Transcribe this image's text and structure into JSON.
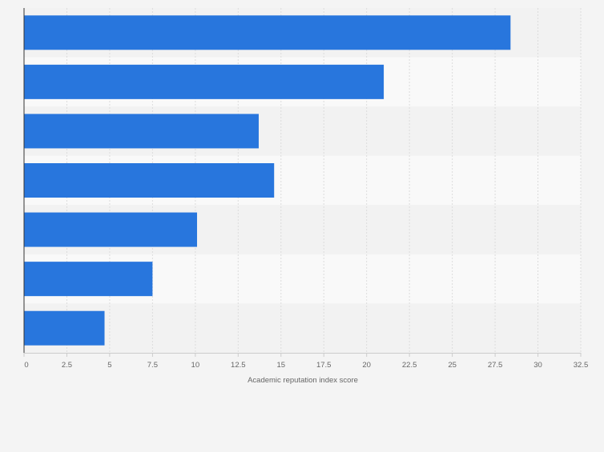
{
  "chart_data": {
    "type": "bar",
    "orientation": "horizontal",
    "categories": [
      "",
      "",
      "",
      "",
      "",
      "",
      ""
    ],
    "values": [
      28.4,
      21.0,
      13.7,
      14.6,
      10.1,
      7.5,
      4.7
    ],
    "xlabel": "Academic reputation index score",
    "ylabel": "",
    "xlim": [
      0,
      32.5
    ],
    "xticks": [
      0,
      2.5,
      5,
      7.5,
      10,
      12.5,
      15,
      17.5,
      20,
      22.5,
      25,
      27.5,
      30,
      32.5
    ],
    "xtick_labels": [
      "0",
      "2.5",
      "5",
      "7.5",
      "10",
      "12.5",
      "15",
      "17.5",
      "20",
      "22.5",
      "25",
      "27.5",
      "30",
      "32.5"
    ],
    "grid": "vertical",
    "colors": {
      "bar": "#2876dd",
      "band_light": "#f9f9f9",
      "band_dark": "#f2f2f2",
      "background": "#f4f4f4",
      "grid": "#dcdcdc",
      "axis": "#333333",
      "text": "#666666"
    }
  }
}
